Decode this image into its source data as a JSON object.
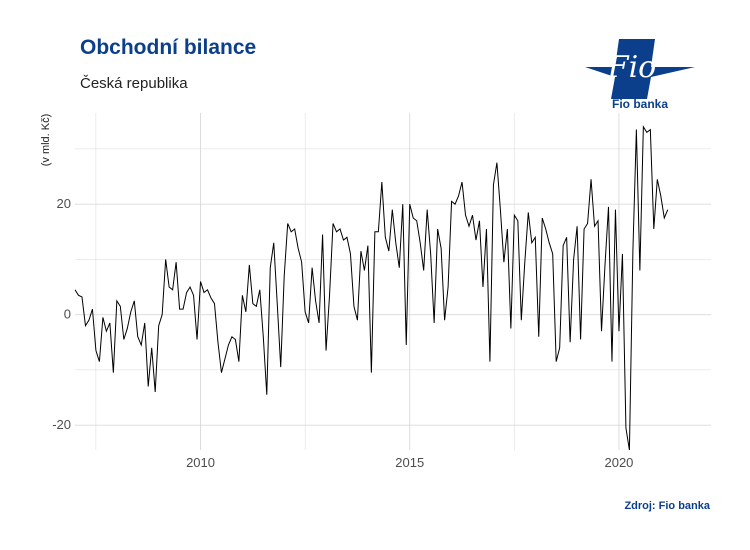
{
  "header": {
    "title": "Obchodní bilance",
    "subtitle": "Česká republika",
    "source": "Zdroj: Fio banka"
  },
  "logo": {
    "wordmark": "Fio",
    "caption": "Fio banka"
  },
  "colors": {
    "brand": "#0b3f8c",
    "line": "#000000",
    "grid": "#d9d9d9"
  },
  "chart_data": {
    "type": "line",
    "ylabel": "(v mld. Kč)",
    "xlim": [
      2007.0,
      2022.2
    ],
    "ylim": [
      -24.5,
      36.5
    ],
    "x_ticks": [
      2010,
      2015,
      2020
    ],
    "x_tick_labels": [
      "2010",
      "2015",
      "2020"
    ],
    "y_ticks": [
      -20,
      0,
      20
    ],
    "y_tick_labels": [
      "-20",
      "0",
      "20"
    ],
    "grid": true,
    "series": [
      {
        "start": "2007-01",
        "frequency": "monthly",
        "values": [
          4.5,
          3.5,
          3.2,
          -2.0,
          -1.0,
          1.0,
          -6.5,
          -8.5,
          -0.5,
          -3.0,
          -1.5,
          -10.5,
          2.5,
          1.5,
          -4.5,
          -2.5,
          0.5,
          2.5,
          -4.0,
          -5.5,
          -1.5,
          -13.0,
          -6.0,
          -14.0,
          -2.0,
          0.0,
          10.0,
          5.0,
          4.5,
          9.5,
          1.0,
          1.0,
          4.0,
          5.0,
          3.5,
          -4.5,
          6.0,
          4.0,
          4.5,
          3.0,
          2.0,
          -5.0,
          -10.5,
          -8.0,
          -5.5,
          -4.0,
          -4.5,
          -8.5,
          3.5,
          0.5,
          9.0,
          2.0,
          1.5,
          4.5,
          -4.0,
          -14.5,
          8.5,
          13.0,
          2.0,
          -9.5,
          7.0,
          16.5,
          15.0,
          15.5,
          12.0,
          9.5,
          0.5,
          -1.5,
          8.5,
          2.5,
          -1.5,
          14.5,
          -6.5,
          3.5,
          16.5,
          15.0,
          15.5,
          13.5,
          14.0,
          11.0,
          1.5,
          -1.0,
          11.5,
          8.0,
          12.5,
          -10.5,
          15.0,
          15.0,
          24.0,
          14.0,
          11.5,
          19.0,
          13.0,
          8.5,
          20.0,
          -5.5,
          20.0,
          17.5,
          17.0,
          13.0,
          8.0,
          19.0,
          11.0,
          -1.5,
          15.5,
          12.0,
          -1.0,
          5.0,
          20.5,
          20.0,
          21.5,
          24.0,
          18.0,
          16.0,
          18.0,
          13.5,
          17.0,
          5.0,
          15.5,
          -8.5,
          23.5,
          27.5,
          19.0,
          9.5,
          15.5,
          -2.5,
          18.0,
          17.0,
          -1.0,
          9.5,
          18.5,
          13.0,
          14.0,
          -4.0,
          17.5,
          15.5,
          13.0,
          11.0,
          -8.5,
          -6.0,
          12.5,
          14.0,
          -5.0,
          10.0,
          16.0,
          -4.5,
          15.5,
          16.5,
          24.5,
          16.0,
          17.0,
          -3.0,
          9.0,
          19.5,
          -8.5,
          19.0,
          -3.0,
          11.0,
          -20.5,
          -24.5,
          11.5,
          33.5,
          8.0,
          34.0,
          33.0,
          33.5,
          15.5,
          24.5,
          21.5,
          17.5,
          19.0
        ]
      }
    ]
  }
}
